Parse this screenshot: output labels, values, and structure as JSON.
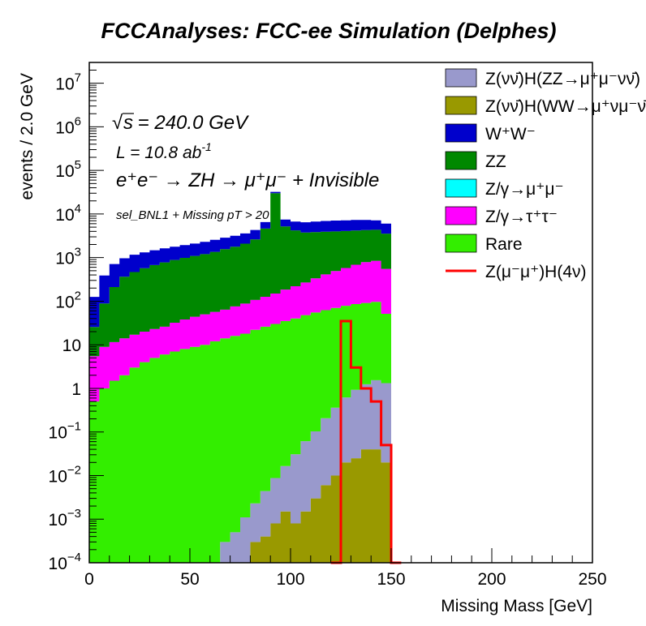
{
  "chart_data": {
    "type": "area",
    "title": "FCCAnalyses: FCC-ee Simulation (Delphes)",
    "xlabel": "Missing Mass [GeV]",
    "ylabel": "events / 2.0 GeV",
    "xlim": [
      0,
      250
    ],
    "ylim": [
      0.0001,
      30000000
    ],
    "y_scale": "log",
    "grid": false,
    "legend_position": "top-right",
    "x_ticks": [
      "0",
      "50",
      "100",
      "150",
      "200",
      "250"
    ],
    "y_ticks": [
      {
        "base": "10",
        "exp": "7",
        "value": 10000000
      },
      {
        "base": "10",
        "exp": "6",
        "value": 1000000
      },
      {
        "base": "10",
        "exp": "5",
        "value": 100000
      },
      {
        "base": "10",
        "exp": "4",
        "value": 10000
      },
      {
        "base": "10",
        "exp": "3",
        "value": 1000
      },
      {
        "base": "10",
        "exp": "2",
        "value": 100
      },
      {
        "base": "10",
        "exp": "",
        "value": 10
      },
      {
        "base": "1",
        "exp": "",
        "value": 1
      },
      {
        "base": "10",
        "exp": "−1",
        "value": 0.1
      },
      {
        "base": "10",
        "exp": "−2",
        "value": 0.01
      },
      {
        "base": "10",
        "exp": "−3",
        "value": 0.001
      },
      {
        "base": "10",
        "exp": "−4",
        "value": 0.0001
      }
    ],
    "annotations": {
      "sqrt_s_symbol": "s",
      "sqrt_s_value": " = 240.0 GeV",
      "lumi_main": "L = 10.8 ab",
      "lumi_exp": "-1",
      "process": "e⁺e⁻ → ZH → μ⁺μ⁻ + Invisible",
      "selection": "sel_BNL1 + Missing pT > 20"
    },
    "x": [
      0,
      5,
      10,
      15,
      20,
      25,
      30,
      35,
      40,
      45,
      50,
      55,
      60,
      65,
      70,
      75,
      80,
      85,
      90,
      95,
      100,
      105,
      110,
      115,
      120,
      125,
      130,
      135,
      140,
      145,
      150,
      155,
      160,
      200,
      250
    ],
    "series": [
      {
        "name": "Z(νν̄)H(WW→μ⁺νμ⁻ν̄)",
        "color": "#999900",
        "stacked": true,
        "values": [
          null,
          null,
          null,
          null,
          null,
          null,
          null,
          null,
          null,
          null,
          null,
          null,
          null,
          null,
          null,
          0.0001,
          0.0003,
          0.0004,
          0.0008,
          0.0015,
          0.0008,
          0.0015,
          0.003,
          0.006,
          0.01,
          0.02,
          0.025,
          0.04,
          0.04,
          0.02,
          null,
          null,
          null,
          null,
          null
        ]
      },
      {
        "name": "Z(νν̄)H(ZZ→μ⁺μ⁻νν̄)",
        "color": "#9999cc",
        "stacked": true,
        "values": [
          null,
          null,
          null,
          null,
          null,
          null,
          null,
          null,
          null,
          null,
          null,
          null,
          0.0001,
          0.0003,
          0.0005,
          0.001,
          0.002,
          0.004,
          0.008,
          0.015,
          0.03,
          0.06,
          0.1,
          0.2,
          0.35,
          0.6,
          0.9,
          1.2,
          1.5,
          1.3,
          null,
          null,
          null,
          null,
          null
        ]
      },
      {
        "name": "Rare",
        "color": "#33ee00",
        "stacked": true,
        "values": [
          0.5,
          1,
          1.5,
          2,
          3,
          4,
          5,
          6,
          7,
          8,
          9,
          10,
          12,
          14,
          16,
          18,
          22,
          26,
          30,
          35,
          40,
          48,
          55,
          62,
          70,
          78,
          85,
          90,
          95,
          50,
          null,
          null,
          null,
          null,
          null
        ]
      },
      {
        "name": "Z/γ→τ⁺τ⁻",
        "color": "#ff00ff",
        "stacked": true,
        "values": [
          5,
          8,
          10,
          12,
          14,
          16,
          18,
          20,
          25,
          30,
          35,
          40,
          45,
          50,
          60,
          70,
          85,
          100,
          120,
          150,
          180,
          220,
          280,
          350,
          420,
          500,
          600,
          700,
          750,
          500,
          null,
          null,
          null,
          null,
          null
        ]
      },
      {
        "name": "Z/γ→μ⁺μ⁻",
        "color": "#00ffff",
        "stacked": true,
        "values": [
          0,
          0,
          0,
          0,
          0,
          0,
          0,
          0,
          0,
          0,
          0,
          0,
          0,
          0,
          0,
          0,
          0,
          0,
          0,
          0,
          0,
          0,
          0,
          0,
          0,
          0,
          0,
          0,
          0,
          0,
          null,
          null,
          null,
          null,
          null
        ]
      },
      {
        "name": "ZZ",
        "color": "#008800",
        "stacked": true,
        "values": [
          20,
          80,
          200,
          350,
          450,
          550,
          650,
          750,
          850,
          950,
          1050,
          1150,
          1300,
          1500,
          1700,
          2000,
          2500,
          4500,
          30000,
          5000,
          4000,
          3500,
          3500,
          3500,
          3500,
          3500,
          3500,
          3500,
          3500,
          3000,
          null,
          null,
          null,
          null,
          null
        ]
      },
      {
        "name": "W⁺W⁻",
        "color": "#0000cc",
        "stacked": true,
        "values": [
          100,
          300,
          500,
          600,
          700,
          750,
          800,
          850,
          900,
          950,
          1000,
          1100,
          1200,
          1300,
          1400,
          1500,
          1700,
          1900,
          2100,
          2300,
          2500,
          2700,
          2900,
          3000,
          3100,
          3100,
          3100,
          3000,
          2800,
          2500,
          null,
          null,
          null,
          null,
          null
        ]
      },
      {
        "name": "Z(μ⁻μ⁺)H(4ν)",
        "color": "#ff0000",
        "stacked": false,
        "values": [
          null,
          null,
          null,
          null,
          null,
          null,
          null,
          null,
          null,
          null,
          null,
          null,
          null,
          null,
          null,
          null,
          null,
          null,
          null,
          null,
          null,
          null,
          null,
          null,
          0.0001,
          35,
          3,
          1,
          0.5,
          0.05,
          0.0001,
          null,
          null,
          null,
          null
        ]
      }
    ]
  }
}
